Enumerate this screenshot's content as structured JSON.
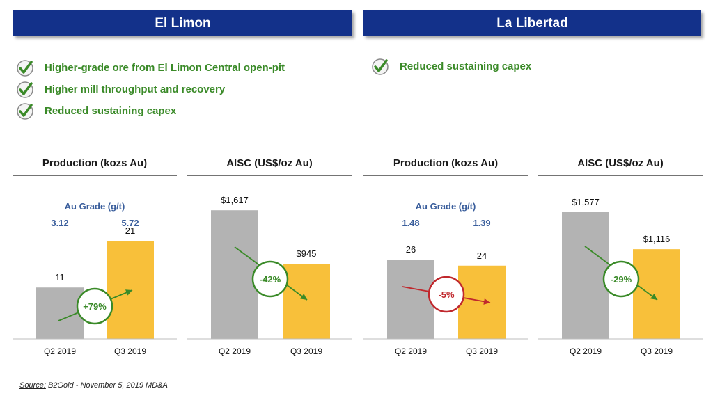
{
  "sections": [
    {
      "title": "El Limon",
      "bullets": [
        "Higher-grade ore from El Limon Central open-pit",
        "Higher mill throughput and recovery",
        "Reduced sustaining capex"
      ]
    },
    {
      "title": "La Libertad",
      "bullets": [
        "Reduced sustaining capex"
      ]
    }
  ],
  "chart_data": [
    {
      "type": "bar",
      "title": "Production (kozs Au)",
      "categories": [
        "Q2 2019",
        "Q3 2019"
      ],
      "values": [
        11,
        21
      ],
      "value_labels": [
        "11",
        "21"
      ],
      "ylim": [
        0,
        34
      ],
      "grade_label": "Au Grade (g/t)",
      "grades": [
        "3.12",
        "5.72"
      ],
      "change": "+79%",
      "change_color": "#3a8a28",
      "colors": [
        "#b3b3b3",
        "#f8c03a"
      ]
    },
    {
      "type": "bar",
      "title": "AISC (US$/oz Au)",
      "categories": [
        "Q2 2019",
        "Q3 2019"
      ],
      "values": [
        1617,
        945
      ],
      "value_labels": [
        "$1,617",
        "$945"
      ],
      "ylim": [
        0,
        1995
      ],
      "change": "-42%",
      "change_color": "#3a8a28",
      "colors": [
        "#b3b3b3",
        "#f8c03a"
      ]
    },
    {
      "type": "bar",
      "title": "Production (kozs Au)",
      "categories": [
        "Q2 2019",
        "Q3 2019"
      ],
      "values": [
        26,
        24
      ],
      "value_labels": [
        "26",
        "24"
      ],
      "ylim": [
        0,
        52
      ],
      "grade_label": "Au Grade (g/t)",
      "grades": [
        "1.48",
        "1.39"
      ],
      "change": "-5%",
      "change_color": "#c0282d",
      "colors": [
        "#b3b3b3",
        "#f8c03a"
      ]
    },
    {
      "type": "bar",
      "title": "AISC (US$/oz Au)",
      "categories": [
        "Q2 2019",
        "Q3 2019"
      ],
      "values": [
        1577,
        1116
      ],
      "value_labels": [
        "$1,577",
        "$1,116"
      ],
      "ylim": [
        0,
        1975
      ],
      "change": "-29%",
      "change_color": "#3a8a28",
      "colors": [
        "#b3b3b3",
        "#f8c03a"
      ]
    }
  ],
  "source": {
    "label": "Source:",
    "text": " B2Gold - November 5, 2019 MD&A"
  }
}
